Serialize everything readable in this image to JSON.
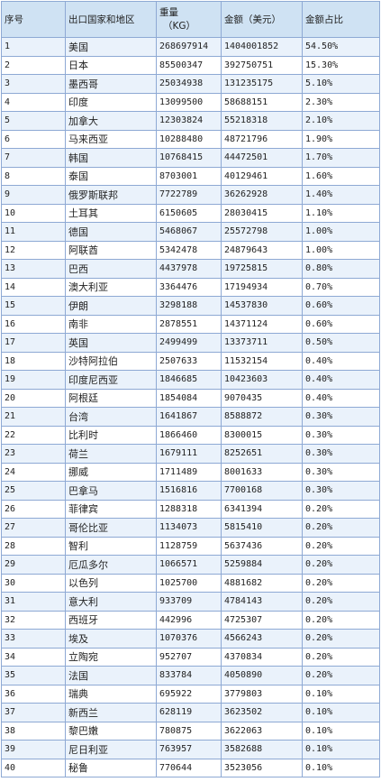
{
  "headers": {
    "no": "序号",
    "region": "出口国家和地区",
    "weight": "重量",
    "weight_unit": "（KG）",
    "amount": "金额（美元）",
    "share": "金额占比"
  },
  "rows": [
    {
      "no": "1",
      "region": "美国",
      "weight": "268697914",
      "amount": "1404001852",
      "share": "54.50%"
    },
    {
      "no": "2",
      "region": "日本",
      "weight": "85500347",
      "amount": "392750751",
      "share": "15.30%"
    },
    {
      "no": "3",
      "region": "墨西哥",
      "weight": "25034938",
      "amount": "131235175",
      "share": "5.10%"
    },
    {
      "no": "4",
      "region": "印度",
      "weight": "13099500",
      "amount": "58688151",
      "share": "2.30%"
    },
    {
      "no": "5",
      "region": "加拿大",
      "weight": "12303824",
      "amount": "55218318",
      "share": "2.10%"
    },
    {
      "no": "6",
      "region": "马来西亚",
      "weight": "10288480",
      "amount": "48721796",
      "share": "1.90%"
    },
    {
      "no": "7",
      "region": "韩国",
      "weight": "10768415",
      "amount": "44472501",
      "share": "1.70%"
    },
    {
      "no": "8",
      "region": "泰国",
      "weight": "8703001",
      "amount": "40129461",
      "share": "1.60%"
    },
    {
      "no": "9",
      "region": "俄罗斯联邦",
      "weight": "7722789",
      "amount": "36262928",
      "share": "1.40%"
    },
    {
      "no": "10",
      "region": "土耳其",
      "weight": "6150605",
      "amount": "28030415",
      "share": "1.10%"
    },
    {
      "no": "11",
      "region": "德国",
      "weight": "5468067",
      "amount": "25572798",
      "share": "1.00%"
    },
    {
      "no": "12",
      "region": "阿联酋",
      "weight": "5342478",
      "amount": "24879643",
      "share": "1.00%"
    },
    {
      "no": "13",
      "region": "巴西",
      "weight": "4437978",
      "amount": "19725815",
      "share": "0.80%"
    },
    {
      "no": "14",
      "region": "澳大利亚",
      "weight": "3364476",
      "amount": "17194934",
      "share": "0.70%"
    },
    {
      "no": "15",
      "region": "伊朗",
      "weight": "3298188",
      "amount": "14537830",
      "share": "0.60%"
    },
    {
      "no": "16",
      "region": "南非",
      "weight": "2878551",
      "amount": "14371124",
      "share": "0.60%"
    },
    {
      "no": "17",
      "region": "英国",
      "weight": "2499499",
      "amount": "13373711",
      "share": "0.50%"
    },
    {
      "no": "18",
      "region": "沙特阿拉伯",
      "weight": "2507633",
      "amount": "11532154",
      "share": "0.40%"
    },
    {
      "no": "19",
      "region": "印度尼西亚",
      "weight": "1846685",
      "amount": "10423603",
      "share": "0.40%"
    },
    {
      "no": "20",
      "region": "阿根廷",
      "weight": "1854084",
      "amount": "9070435",
      "share": "0.40%"
    },
    {
      "no": "21",
      "region": "台湾",
      "weight": "1641867",
      "amount": "8588872",
      "share": "0.30%"
    },
    {
      "no": "22",
      "region": "比利时",
      "weight": "1866460",
      "amount": "8300015",
      "share": "0.30%"
    },
    {
      "no": "23",
      "region": "荷兰",
      "weight": "1679111",
      "amount": "8252651",
      "share": "0.30%"
    },
    {
      "no": "24",
      "region": "挪威",
      "weight": "1711489",
      "amount": "8001633",
      "share": "0.30%"
    },
    {
      "no": "25",
      "region": "巴拿马",
      "weight": "1516816",
      "amount": "7700168",
      "share": "0.30%"
    },
    {
      "no": "26",
      "region": "菲律宾",
      "weight": "1288318",
      "amount": "6341394",
      "share": "0.20%"
    },
    {
      "no": "27",
      "region": "哥伦比亚",
      "weight": "1134073",
      "amount": "5815410",
      "share": "0.20%"
    },
    {
      "no": "28",
      "region": "智利",
      "weight": "1128759",
      "amount": "5637436",
      "share": "0.20%"
    },
    {
      "no": "29",
      "region": "厄瓜多尔",
      "weight": "1066571",
      "amount": "5259884",
      "share": "0.20%"
    },
    {
      "no": "30",
      "region": "以色列",
      "weight": "1025700",
      "amount": "4881682",
      "share": "0.20%"
    },
    {
      "no": "31",
      "region": "意大利",
      "weight": "933709",
      "amount": "4784143",
      "share": "0.20%"
    },
    {
      "no": "32",
      "region": "西班牙",
      "weight": "442996",
      "amount": "4725307",
      "share": "0.20%"
    },
    {
      "no": "33",
      "region": "埃及",
      "weight": "1070376",
      "amount": "4566243",
      "share": "0.20%"
    },
    {
      "no": "34",
      "region": "立陶宛",
      "weight": "952707",
      "amount": "4370834",
      "share": "0.20%"
    },
    {
      "no": "35",
      "region": "法国",
      "weight": "833784",
      "amount": "4050890",
      "share": "0.20%"
    },
    {
      "no": "36",
      "region": "瑞典",
      "weight": "695922",
      "amount": "3779803",
      "share": "0.10%"
    },
    {
      "no": "37",
      "region": "新西兰",
      "weight": "628119",
      "amount": "3623502",
      "share": "0.10%"
    },
    {
      "no": "38",
      "region": "黎巴嫩",
      "weight": "780875",
      "amount": "3622063",
      "share": "0.10%"
    },
    {
      "no": "39",
      "region": "尼日利亚",
      "weight": "763957",
      "amount": "3582688",
      "share": "0.10%"
    },
    {
      "no": "40",
      "region": "秘鲁",
      "weight": "770644",
      "amount": "3523056",
      "share": "0.10%"
    }
  ]
}
